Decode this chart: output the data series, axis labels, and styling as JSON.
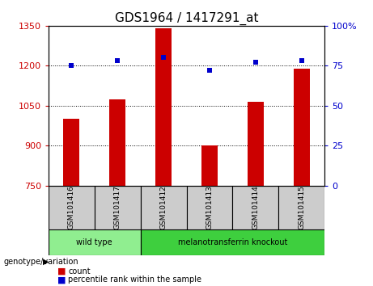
{
  "title": "GDS1964 / 1417291_at",
  "samples": [
    "GSM101416",
    "GSM101417",
    "GSM101412",
    "GSM101413",
    "GSM101414",
    "GSM101415"
  ],
  "counts": [
    1000,
    1075,
    1340,
    900,
    1065,
    1190
  ],
  "percentiles": [
    75,
    78,
    80,
    72,
    77,
    78
  ],
  "ylim_left": [
    750,
    1350
  ],
  "ylim_right": [
    0,
    100
  ],
  "yticks_left": [
    750,
    900,
    1050,
    1200,
    1350
  ],
  "yticks_right": [
    0,
    25,
    50,
    75,
    100
  ],
  "bar_color": "#cc0000",
  "dot_color": "#0000cc",
  "bar_width": 0.35,
  "genotype_groups": [
    {
      "label": "wild type",
      "samples": [
        "GSM101416",
        "GSM101417"
      ],
      "color": "#90ee90"
    },
    {
      "label": "melanotransferrin knockout",
      "samples": [
        "GSM101412",
        "GSM101413",
        "GSM101414",
        "GSM101415"
      ],
      "color": "#3ecf3e"
    }
  ],
  "genotype_label": "genotype/variation",
  "legend_count_label": "count",
  "legend_percentile_label": "percentile rank within the sample",
  "tick_label_color_left": "#cc0000",
  "tick_label_color_right": "#0000cc",
  "bg_color_plot": "#ffffff",
  "sample_box_color": "#cccccc",
  "title_fontsize": 11,
  "axis_fontsize": 8,
  "tick_fontsize": 8,
  "sample_fontsize": 6.5,
  "group_fontsize": 7,
  "legend_fontsize": 7
}
